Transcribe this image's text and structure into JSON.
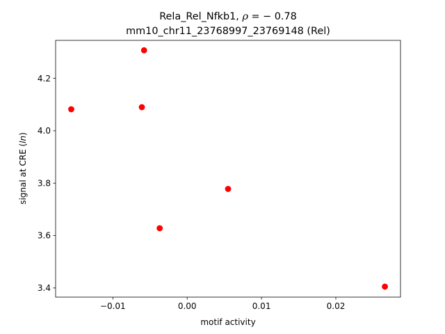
{
  "chart_data": {
    "type": "scatter",
    "title_line1_prefix": "Rela_Rel_Nfkb1, ",
    "title_rho_symbol": "ρ",
    "title_rho_value": " = − 0.78",
    "title_line2": "mm10_chr11_23768997_23769148 (Rel)",
    "xlabel": "motif activity",
    "ylabel_prefix": "signal at CRE (",
    "ylabel_italic": "ln",
    "ylabel_suffix": ")",
    "xlim": [
      -0.0177,
      0.0287
    ],
    "ylim": [
      3.365,
      4.345
    ],
    "xticks": [
      -0.01,
      0.0,
      0.01,
      0.02
    ],
    "xtick_labels": [
      "−0.01",
      "0.00",
      "0.01",
      "0.02"
    ],
    "yticks": [
      3.4,
      3.6,
      3.8,
      4.0,
      4.2
    ],
    "ytick_labels": [
      "3.4",
      "3.6",
      "3.8",
      "4.0",
      "4.2"
    ],
    "grid": false,
    "marker_color": "#ff0000",
    "points": [
      {
        "x": -0.0156,
        "y": 4.082
      },
      {
        "x": -0.0058,
        "y": 4.307
      },
      {
        "x": -0.0061,
        "y": 4.09
      },
      {
        "x": -0.0037,
        "y": 3.628
      },
      {
        "x": 0.0055,
        "y": 3.778
      },
      {
        "x": 0.0266,
        "y": 3.405
      }
    ]
  }
}
